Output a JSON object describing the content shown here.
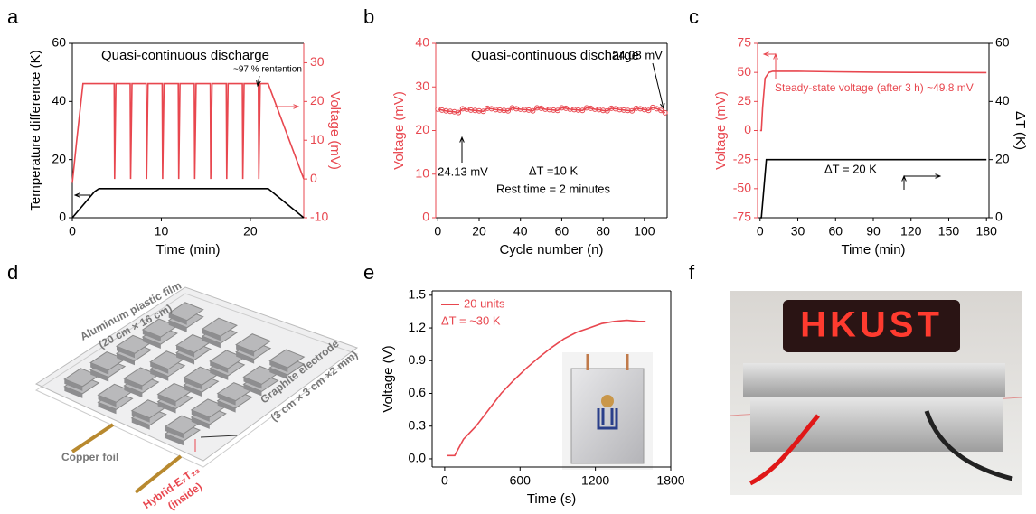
{
  "panel_labels": [
    "a",
    "b",
    "c",
    "d",
    "e",
    "f"
  ],
  "chart_data": [
    {
      "type": "line",
      "title": "Quasi-continuous discharge",
      "xlabel": "Time (min)",
      "ylabel": "Temperature difference (K)",
      "y2label": "Voltage (mV)",
      "xlim": [
        0,
        26
      ],
      "xticks": [
        0,
        10,
        20
      ],
      "ylim": [
        0,
        60
      ],
      "yticks": [
        0,
        20,
        40,
        60
      ],
      "y2lim": [
        -10,
        35
      ],
      "y2ticks": [
        -10,
        0,
        10,
        20,
        30
      ],
      "ycolor": "#000000",
      "y2color": "#e8474f",
      "series": [
        {
          "color": "#000000",
          "x": [
            0,
            2.5,
            3,
            22,
            26
          ],
          "values": [
            0,
            9,
            10,
            10,
            0
          ]
        },
        {
          "color": "#e8474f",
          "axis": "y2",
          "x": [
            0,
            0.5,
            1.2,
            4.7,
            4.75,
            4.9,
            6.5,
            6.55,
            6.7,
            8.3,
            8.35,
            8.5,
            10.1,
            10.15,
            10.3,
            11.9,
            11.95,
            12.1,
            13.7,
            13.75,
            13.9,
            15.5,
            15.55,
            15.7,
            17.3,
            17.35,
            17.5,
            19.1,
            19.15,
            19.3,
            20.9,
            20.95,
            21.1,
            22,
            26
          ],
          "values": [
            -1,
            10,
            24.6,
            24.6,
            0,
            24.6,
            24.6,
            0,
            24.6,
            24.6,
            0,
            24.6,
            24.6,
            0,
            24.6,
            24.6,
            0,
            24.6,
            24.6,
            0,
            24.6,
            24.6,
            0,
            24.6,
            24.6,
            0,
            24.6,
            24.6,
            0,
            24.6,
            24.6,
            0,
            24.6,
            24.6,
            0
          ]
        }
      ],
      "annotations": [
        "~97 % rentention"
      ]
    },
    {
      "type": "line",
      "title": "Quasi-continuous discharge",
      "xlabel": "Cycle number (n)",
      "ylabel": "Voltage (mV)",
      "xlim": [
        -1,
        111
      ],
      "xticks": [
        0,
        20,
        40,
        60,
        80,
        100
      ],
      "ylim": [
        0,
        40
      ],
      "yticks": [
        0,
        10,
        20,
        30,
        40
      ],
      "ycolor": "#e8474f",
      "series": [
        {
          "color": "#e8474f",
          "marker": "circle",
          "x": [
            0,
            2,
            4,
            6,
            8,
            10,
            12,
            14,
            16,
            18,
            20,
            22,
            24,
            26,
            28,
            30,
            32,
            34,
            36,
            38,
            40,
            42,
            44,
            46,
            48,
            50,
            52,
            54,
            56,
            58,
            60,
            62,
            64,
            66,
            68,
            70,
            72,
            74,
            76,
            78,
            80,
            82,
            84,
            86,
            88,
            90,
            92,
            94,
            96,
            98,
            100,
            102,
            104,
            106,
            108,
            110
          ],
          "values": [
            24.9,
            24.7,
            24.5,
            24.4,
            24.3,
            24.13,
            25.0,
            24.9,
            24.7,
            24.6,
            24.5,
            24.4,
            25.1,
            25.0,
            24.8,
            24.7,
            24.6,
            24.5,
            25.2,
            25.0,
            24.9,
            24.8,
            24.7,
            24.5,
            25.2,
            25.1,
            24.9,
            24.8,
            24.7,
            24.6,
            25.2,
            25.1,
            24.9,
            24.8,
            24.7,
            24.6,
            25.2,
            25.1,
            24.9,
            24.8,
            24.6,
            24.5,
            25.1,
            25.0,
            24.8,
            24.7,
            24.6,
            24.5,
            25.1,
            25.0,
            24.8,
            24.6,
            25.3,
            25.0,
            24.6,
            24.08
          ]
        }
      ],
      "annotations": [
        "24.13 mV",
        "24.08 mV",
        "ΔT =10 K",
        "Rest time = 2 minutes"
      ]
    },
    {
      "type": "line",
      "xlabel": "Time (min)",
      "ylabel": "Voltage (mV)",
      "y2label": "ΔT (K)",
      "xlim": [
        -2,
        182
      ],
      "xticks": [
        0,
        30,
        60,
        90,
        120,
        150,
        180
      ],
      "ylim": [
        -75,
        75
      ],
      "yticks": [
        -75,
        -50,
        -25,
        0,
        25,
        50,
        75
      ],
      "y2lim": [
        0,
        60
      ],
      "y2ticks": [
        0,
        20,
        40,
        60
      ],
      "ycolor": "#e8474f",
      "y2color": "#000000",
      "series": [
        {
          "color": "#e8474f",
          "x": [
            0,
            1,
            2,
            4,
            7,
            10,
            30,
            60,
            90,
            120,
            150,
            180
          ],
          "values": [
            0,
            0,
            20,
            45,
            50,
            51,
            51,
            50.5,
            50.2,
            50,
            49.9,
            49.8
          ]
        },
        {
          "color": "#000000",
          "axis": "y2",
          "x": [
            0,
            1,
            5,
            180
          ],
          "values": [
            0,
            0,
            20,
            20
          ]
        }
      ],
      "annotations": [
        "Steady-state voltage (after 3 h) ~49.8 mV",
        "ΔT = 20 K"
      ]
    },
    {
      "type": "line",
      "xlabel": "Time (s)",
      "ylabel": "Voltage (V)",
      "xlim": [
        -100,
        1800
      ],
      "xticks": [
        0,
        600,
        1200,
        1800
      ],
      "ylim": [
        -0.075,
        1.54
      ],
      "yticks": [
        {
          "value": 0,
          "label": "0.0"
        },
        0.3,
        0.6,
        0.9,
        1.2,
        1.5
      ],
      "ycolor": "#000000",
      "series": [
        {
          "name": "20 units",
          "color": "#e8474f",
          "x": [
            20,
            80,
            150,
            250,
            350,
            450,
            550,
            650,
            750,
            850,
            950,
            1050,
            1150,
            1250,
            1350,
            1450,
            1550,
            1600
          ],
          "values": [
            0.03,
            0.03,
            0.18,
            0.3,
            0.45,
            0.6,
            0.72,
            0.83,
            0.93,
            1.02,
            1.1,
            1.16,
            1.2,
            1.24,
            1.26,
            1.27,
            1.26,
            1.26
          ]
        }
      ],
      "annotations": [
        "ΔT = ~30 K"
      ]
    }
  ],
  "diagram": {
    "film": "Aluminum plastic film",
    "film_size": "(20 cm × 16 cm)",
    "electrode": "Graphite electrode",
    "electrode_size": "(3 cm × 3 cm ×2 mm)",
    "foil": "Copper foil",
    "material": "Hybrid-E₇T₂₃",
    "material_note": "(inside)"
  },
  "photo": {
    "led_text": "HKUST"
  }
}
